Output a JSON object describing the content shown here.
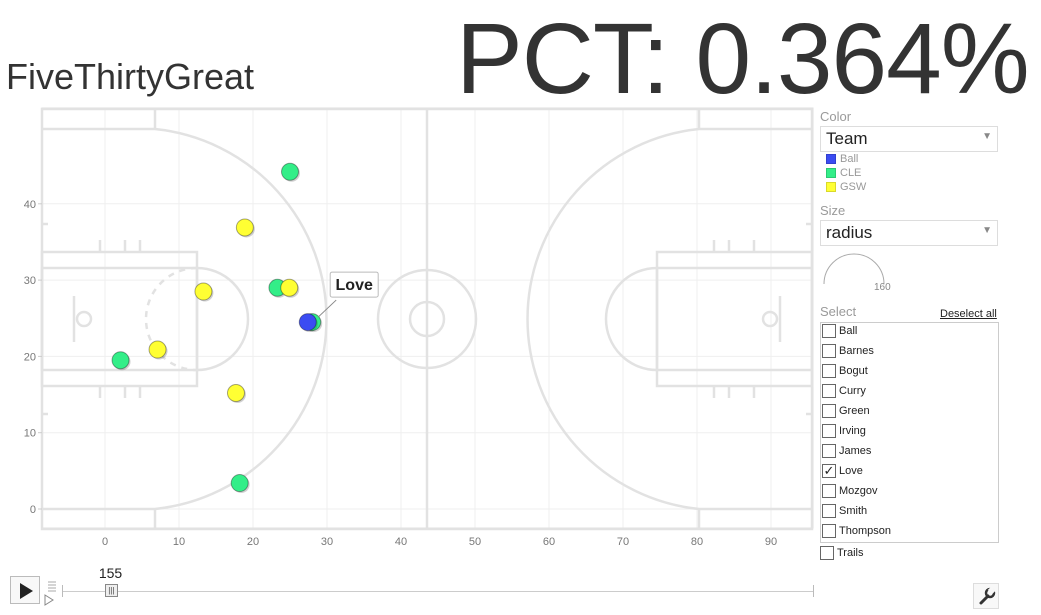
{
  "app": {
    "title": "FiveThirtyGreat"
  },
  "pct": {
    "text": "PCT: 0.364%"
  },
  "chart_data": {
    "type": "scatter",
    "xlim": [
      -8,
      96
    ],
    "ylim": [
      -3,
      50
    ],
    "xticks": [
      0,
      10,
      20,
      30,
      40,
      50,
      60,
      70,
      80,
      90
    ],
    "yticks": [
      0,
      10,
      20,
      30,
      40
    ],
    "grid": true,
    "points": [
      {
        "label": "Ball",
        "team": "Ball",
        "x": 27.4,
        "y": 24.5
      },
      {
        "label": "Love",
        "team": "CLE",
        "x": 28.0,
        "y": 24.5
      },
      {
        "team": "CLE",
        "x": 25.0,
        "y": 44.2
      },
      {
        "team": "CLE",
        "x": 23.3,
        "y": 29.0
      },
      {
        "team": "CLE",
        "x": 2.1,
        "y": 19.5
      },
      {
        "team": "CLE",
        "x": 18.2,
        "y": 3.4
      },
      {
        "team": "GSW",
        "x": 18.9,
        "y": 36.9
      },
      {
        "team": "GSW",
        "x": 24.9,
        "y": 29.0
      },
      {
        "team": "GSW",
        "x": 13.3,
        "y": 28.5
      },
      {
        "team": "GSW",
        "x": 7.1,
        "y": 20.9
      },
      {
        "team": "GSW",
        "x": 17.7,
        "y": 15.2
      }
    ],
    "tooltip": {
      "label": "Love"
    }
  },
  "colors": {
    "Ball": "#3b4cf2",
    "CLE": "#33ee88",
    "GSW": "#ffff33"
  },
  "sidebar": {
    "color_heading": "Color",
    "color_value": "Team",
    "legend": [
      {
        "label": "Ball",
        "color": "#3b4cf2"
      },
      {
        "label": "CLE",
        "color": "#33ee88"
      },
      {
        "label": "GSW",
        "color": "#ffff33"
      }
    ],
    "size_heading": "Size",
    "size_value": "radius",
    "size_scale_value": "160",
    "select_heading": "Select",
    "deselect_all": "Deselect all",
    "select_items": [
      {
        "label": "Ball",
        "checked": false
      },
      {
        "label": "Barnes",
        "checked": false
      },
      {
        "label": "Bogut",
        "checked": false
      },
      {
        "label": "Curry",
        "checked": false
      },
      {
        "label": "Green",
        "checked": false
      },
      {
        "label": "Irving",
        "checked": false
      },
      {
        "label": "James",
        "checked": false
      },
      {
        "label": "Love",
        "checked": true
      },
      {
        "label": "Mozgov",
        "checked": false
      },
      {
        "label": "Smith",
        "checked": false
      },
      {
        "label": "Thompson",
        "checked": false
      }
    ],
    "trails_label": "Trails"
  },
  "controls": {
    "frame": "155",
    "slider_fraction": 0.065
  }
}
